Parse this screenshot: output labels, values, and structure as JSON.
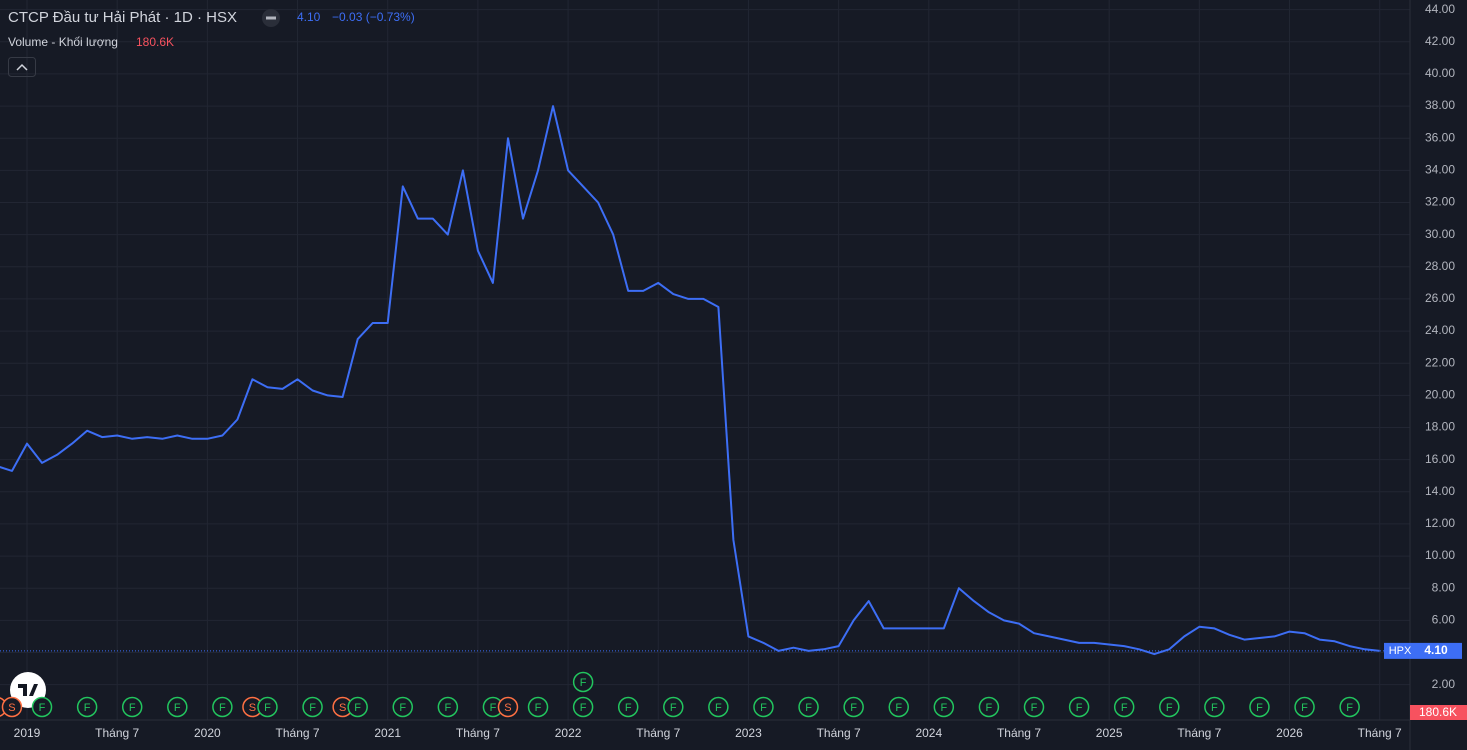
{
  "chart_data": {
    "type": "line",
    "title": "CTCP Đầu tư Hải Phát · 1D · HSX",
    "change": "−0.03 (−0.73%)",
    "volume_title": "Volume - Khối lượng",
    "volume_last": "180.6K",
    "symbol": "HPX",
    "last_price": {
      "value": 4.1,
      "label": "4.10"
    },
    "color": "#3d6ef5",
    "grid": true,
    "x": [
      "2018-11",
      "2018-12",
      "2019-01",
      "2019-02",
      "2019-03",
      "2019-04",
      "2019-05",
      "2019-06",
      "2019-07",
      "2019-08",
      "2019-09",
      "2019-10",
      "2019-11",
      "2019-12",
      "2020-01",
      "2020-02",
      "2020-03",
      "2020-04",
      "2020-05",
      "2020-06",
      "2020-07",
      "2020-08",
      "2020-09",
      "2020-10",
      "2020-11",
      "2020-12",
      "2021-01",
      "2021-02",
      "2021-03",
      "2021-04",
      "2021-05",
      "2021-06",
      "2021-07",
      "2021-08",
      "2021-09",
      "2021-10",
      "2021-11",
      "2021-12",
      "2022-01",
      "2022-02",
      "2022-03",
      "2022-04",
      "2022-05",
      "2022-06",
      "2022-07",
      "2022-08",
      "2022-09",
      "2022-10",
      "2022-11",
      "2022-12",
      "2023-01",
      "2023-02",
      "2023-03",
      "2023-04",
      "2023-05",
      "2023-06",
      "2023-07",
      "2023-08",
      "2023-09",
      "2023-10",
      "2023-11",
      "2023-12",
      "2024-01",
      "2024-02",
      "2024-03",
      "2024-04",
      "2024-05",
      "2024-06",
      "2024-07",
      "2024-08",
      "2024-09",
      "2024-10",
      "2024-11",
      "2024-12",
      "2025-01",
      "2025-02",
      "2025-03",
      "2025-04",
      "2025-05",
      "2025-06",
      "2025-07",
      "2025-08",
      "2025-09",
      "2025-10",
      "2025-11",
      "2025-12",
      "2026-01",
      "2026-02",
      "2026-03",
      "2026-04",
      "2026-05",
      "2026-06",
      "2026-07"
    ],
    "values": [
      15.6,
      15.3,
      17.0,
      15.8,
      16.3,
      17.0,
      17.8,
      17.4,
      17.5,
      17.3,
      17.4,
      17.3,
      17.5,
      17.3,
      17.3,
      17.5,
      18.5,
      21.0,
      20.5,
      20.4,
      21.0,
      20.3,
      20.0,
      19.9,
      23.5,
      24.5,
      24.5,
      33.0,
      31.0,
      31.0,
      30.0,
      34.0,
      29.0,
      27.0,
      36.0,
      31.0,
      34.0,
      38.0,
      34.0,
      33.0,
      32.0,
      30.0,
      26.5,
      26.5,
      27.0,
      26.3,
      26.0,
      26.0,
      25.5,
      11.0,
      5.0,
      4.6,
      4.1,
      4.3,
      4.1,
      4.2,
      4.4,
      6.0,
      7.2,
      5.5,
      5.5,
      5.5,
      5.5,
      5.5,
      8.0,
      7.2,
      6.5,
      6.0,
      5.8,
      5.2,
      5.0,
      4.8,
      4.6,
      4.6,
      4.5,
      4.4,
      4.2,
      3.9,
      4.2,
      5.0,
      5.6,
      5.5,
      5.1,
      4.8,
      4.9,
      5.0,
      5.3,
      5.2,
      4.8,
      4.7,
      4.4,
      4.2,
      4.1
    ],
    "ylim": [
      -0.2,
      44.6
    ],
    "yticks": [
      {
        "value": 2,
        "label": "2.00"
      },
      {
        "value": 4,
        "label": "4.00"
      },
      {
        "value": 6,
        "label": "6.00"
      },
      {
        "value": 8,
        "label": "8.00"
      },
      {
        "value": 10,
        "label": "10.00"
      },
      {
        "value": 12,
        "label": "12.00"
      },
      {
        "value": 14,
        "label": "14.00"
      },
      {
        "value": 16,
        "label": "16.00"
      },
      {
        "value": 18,
        "label": "18.00"
      },
      {
        "value": 20,
        "label": "20.00"
      },
      {
        "value": 22,
        "label": "22.00"
      },
      {
        "value": 24,
        "label": "24.00"
      },
      {
        "value": 26,
        "label": "26.00"
      },
      {
        "value": 28,
        "label": "28.00"
      },
      {
        "value": 30,
        "label": "30.00"
      },
      {
        "value": 32,
        "label": "32.00"
      },
      {
        "value": 34,
        "label": "34.00"
      },
      {
        "value": 36,
        "label": "36.00"
      },
      {
        "value": 38,
        "label": "38.00"
      },
      {
        "value": 40,
        "label": "40.00"
      },
      {
        "value": 42,
        "label": "42.00"
      },
      {
        "value": 44,
        "label": "44.00"
      }
    ],
    "xticks": [
      {
        "value": "2019-01",
        "label": "2019"
      },
      {
        "value": "2019-07",
        "label": "Tháng 7"
      },
      {
        "value": "2020-01",
        "label": "2020"
      },
      {
        "value": "2020-07",
        "label": "Tháng 7"
      },
      {
        "value": "2021-01",
        "label": "2021"
      },
      {
        "value": "2021-07",
        "label": "Tháng 7"
      },
      {
        "value": "2022-01",
        "label": "2022"
      },
      {
        "value": "2022-07",
        "label": "Tháng 7"
      },
      {
        "value": "2023-01",
        "label": "2023"
      },
      {
        "value": "2023-07",
        "label": "Tháng 7"
      },
      {
        "value": "2024-01",
        "label": "2024"
      },
      {
        "value": "2024-07",
        "label": "Tháng 7"
      },
      {
        "value": "2025-01",
        "label": "2025"
      },
      {
        "value": "2025-07",
        "label": "Tháng 7"
      },
      {
        "value": "2026-01",
        "label": "2026"
      },
      {
        "value": "2026-07",
        "label": "Tháng 7"
      }
    ],
    "events": [
      {
        "x": "2018-11",
        "label": "S"
      },
      {
        "x": "2018-12",
        "label": "S"
      },
      {
        "x": "2019-02",
        "label": "F"
      },
      {
        "x": "2019-05",
        "label": "F"
      },
      {
        "x": "2019-08",
        "label": "F"
      },
      {
        "x": "2019-11",
        "label": "F"
      },
      {
        "x": "2020-02",
        "label": "F"
      },
      {
        "x": "2020-04",
        "label": "S"
      },
      {
        "x": "2020-05",
        "label": "F"
      },
      {
        "x": "2020-08",
        "label": "F"
      },
      {
        "x": "2020-10",
        "label": "S"
      },
      {
        "x": "2020-11",
        "label": "F"
      },
      {
        "x": "2021-02",
        "label": "F"
      },
      {
        "x": "2021-05",
        "label": "F"
      },
      {
        "x": "2021-08",
        "label": "F"
      },
      {
        "x": "2021-09",
        "label": "S"
      },
      {
        "x": "2021-11",
        "label": "F"
      },
      {
        "x": "2022-02",
        "label": "F"
      },
      {
        "x": "2022-02",
        "label": "F"
      },
      {
        "x": "2022-05",
        "label": "F"
      },
      {
        "x": "2022-08",
        "label": "F"
      },
      {
        "x": "2022-11",
        "label": "F"
      },
      {
        "x": "2023-02",
        "label": "F"
      },
      {
        "x": "2023-05",
        "label": "F"
      },
      {
        "x": "2023-08",
        "label": "F"
      },
      {
        "x": "2023-11",
        "label": "F"
      },
      {
        "x": "2024-02",
        "label": "F"
      },
      {
        "x": "2024-05",
        "label": "F"
      },
      {
        "x": "2024-08",
        "label": "F"
      },
      {
        "x": "2024-11",
        "label": "F"
      },
      {
        "x": "2025-02",
        "label": "F"
      },
      {
        "x": "2025-05",
        "label": "F"
      },
      {
        "x": "2025-08",
        "label": "F"
      },
      {
        "x": "2025-11",
        "label": "F"
      },
      {
        "x": "2026-02",
        "label": "F"
      },
      {
        "x": "2026-05",
        "label": "F"
      }
    ]
  }
}
